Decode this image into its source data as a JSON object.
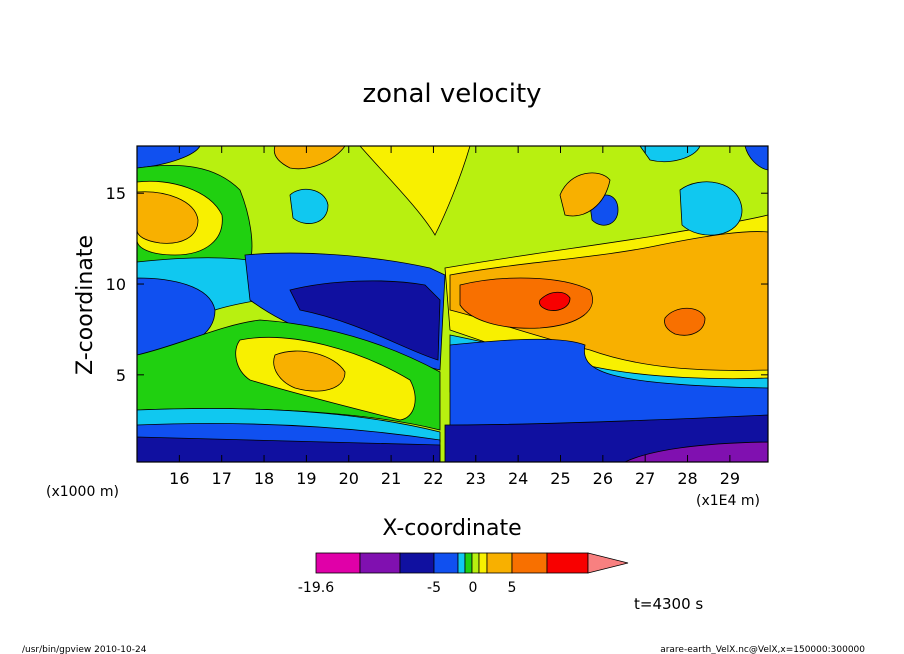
{
  "chart_data": {
    "type": "heatmap",
    "title": "zonal velocity",
    "xlabel": "X-coordinate",
    "ylabel": "Z-coordinate",
    "x_unit": "(x1E4 m)",
    "y_unit": "(x1000 m)",
    "x_ticks": [
      "16",
      "17",
      "18",
      "19",
      "20",
      "21",
      "22",
      "23",
      "24",
      "25",
      "26",
      "27",
      "28",
      "29"
    ],
    "x_tick_values": [
      16,
      17,
      18,
      19,
      20,
      21,
      22,
      23,
      24,
      25,
      26,
      27,
      28,
      29
    ],
    "y_ticks": [
      "5",
      "10",
      "15"
    ],
    "y_tick_values": [
      5,
      10,
      15
    ],
    "xlim": [
      15,
      29.9
    ],
    "ylim": [
      0.2,
      17.6
    ],
    "time_label": "t=4300 s",
    "colorbar": {
      "min_label": "-19.6",
      "labels": [
        "-5",
        "0",
        "5"
      ],
      "colors": [
        "#e000a8",
        "#8010b0",
        "#1010a0",
        "#1050f0",
        "#10c8f0",
        "#20d010",
        "#b8f010",
        "#f8f000",
        "#f8b000",
        "#f87000",
        "#f80000",
        "#f88080"
      ]
    },
    "features": [
      {
        "label": "max positive",
        "x": 25.0,
        "z": 8.8,
        "color": "#f80000"
      },
      {
        "label": "secondary positive",
        "x": 28.0,
        "z": 7.8,
        "color": "#f87000"
      },
      {
        "label": "upper-left positive",
        "x": 15.8,
        "z": 14.1,
        "color": "#f8b000"
      },
      {
        "label": "lower-left positive",
        "x": 19.2,
        "z": 5.0,
        "color": "#f8b000"
      },
      {
        "label": "min negative",
        "x": 28.3,
        "z": 0.5,
        "color": "#8010b0"
      }
    ]
  },
  "footer": {
    "left": "/usr/bin/gpview   2010-10-24",
    "right": "arare-earth_VelX.nc@VelX,x=150000:300000"
  }
}
